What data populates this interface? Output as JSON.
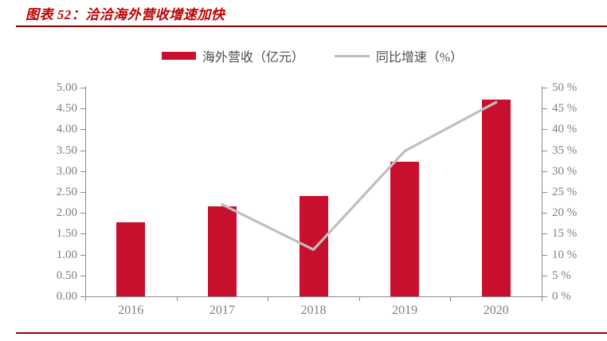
{
  "figure": {
    "title": "图表 52：洽洽海外营收增速加快",
    "title_color": "#C00000",
    "top_rule_color": "#8B0000",
    "bottom_rule_color": "#990000"
  },
  "legend": [
    {
      "label": "海外营收（亿元）",
      "type": "bar"
    },
    {
      "label": "同比增速（%）",
      "type": "line"
    }
  ],
  "chart_data": {
    "type": "bar+line",
    "title": "图表 52：洽洽海外营收增速加快",
    "categories": [
      "2016",
      "2017",
      "2018",
      "2019",
      "2020"
    ],
    "series": [
      {
        "name": "海外营收（亿元）",
        "type": "bar",
        "axis": "left",
        "color": "#C8102E",
        "values": [
          1.77,
          2.16,
          2.41,
          3.23,
          4.72
        ]
      },
      {
        "name": "同比增速（%）",
        "type": "line",
        "axis": "right",
        "color": "#BFBFBF",
        "values": [
          null,
          22.0,
          11.2,
          34.8,
          46.5
        ]
      }
    ],
    "left_axis": {
      "min": 0,
      "max": 5,
      "step": 0.5,
      "labels": [
        "5.00",
        "4.50",
        "4.00",
        "3.50",
        "3.00",
        "2.50",
        "2.00",
        "1.50",
        "1.00",
        "0.50",
        "0.00"
      ]
    },
    "right_axis": {
      "min": 0,
      "max": 50,
      "step": 5,
      "labels": [
        "50 %",
        "45 %",
        "40 %",
        "35 %",
        "30 %",
        "25 %",
        "20 %",
        "15 %",
        "10 %",
        "5 %",
        "0 %"
      ]
    },
    "grid": false,
    "legend_position": "top-center",
    "axis_color": "#8C8C8C",
    "tick_label_color": "#808080"
  }
}
